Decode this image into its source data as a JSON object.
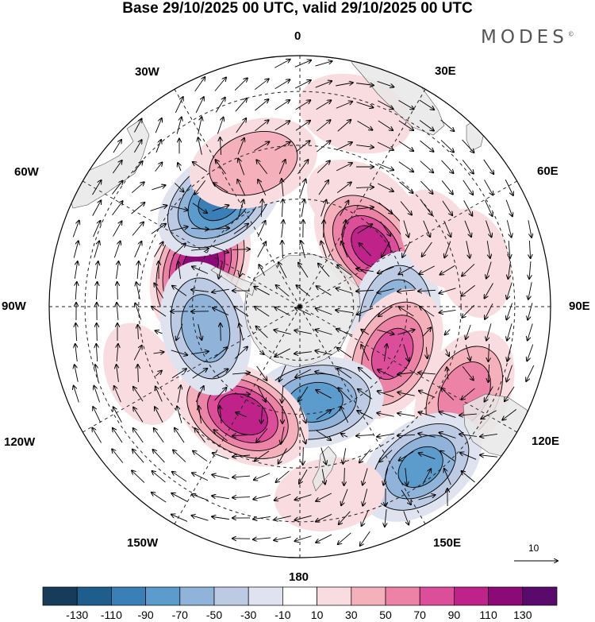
{
  "title": "Base 29/10/2025 00 UTC, valid 29/10/2025 00 UTC",
  "brand": "MODES",
  "brand_mark": "©",
  "longitude_labels": {
    "lon_0": "0",
    "lon_30e": "30E",
    "lon_60e": "60E",
    "lon_90e": "90E",
    "lon_120e": "120E",
    "lon_150e": "150E",
    "lon_180": "180",
    "lon_150w": "150W",
    "lon_120w": "120W",
    "lon_90w": "90W",
    "lon_60w": "60W",
    "lon_30w": "30W"
  },
  "reference_vector_label": "10",
  "colorbar": {
    "colors": [
      "#173c5a",
      "#1f5d8c",
      "#3a7fb5",
      "#5c9ccc",
      "#8fb3d9",
      "#bccbe3",
      "#dfe3ef",
      "#ffffff",
      "#f9dcdf",
      "#f4b0bb",
      "#ec82a5",
      "#dc4d9a",
      "#bf2289",
      "#8c0a78",
      "#5a0a6c"
    ],
    "tick_labels": [
      "-130",
      "-110",
      "-90",
      "-70",
      "-50",
      "-30",
      "-10",
      "10",
      "30",
      "50",
      "70",
      "90",
      "110",
      "130"
    ]
  },
  "anomaly_centres": [
    {
      "lon": -68,
      "lat": -60,
      "value": 118
    },
    {
      "lon": -37,
      "lat": -53,
      "value": -95
    },
    {
      "lon": -18,
      "lat": -48,
      "value": 48
    },
    {
      "lon": 16,
      "lat": -34,
      "value": 22
    },
    {
      "lon": 32,
      "lat": -57,
      "value": 28
    },
    {
      "lon": 50,
      "lat": -64,
      "value": 94
    },
    {
      "lon": 76,
      "lat": -40,
      "value": 18
    },
    {
      "lon": 98,
      "lat": -63,
      "value": -75
    },
    {
      "lon": 117,
      "lat": -61,
      "value": 76
    },
    {
      "lon": 118,
      "lat": -38,
      "value": 62
    },
    {
      "lon": 143,
      "lat": -34,
      "value": -72
    },
    {
      "lon": 171,
      "lat": -37,
      "value": 18
    },
    {
      "lon": 171,
      "lat": -63,
      "value": -78
    },
    {
      "lon": -152,
      "lat": -56,
      "value": 100
    },
    {
      "lon": -113,
      "lat": -42,
      "value": 15
    },
    {
      "lon": -103,
      "lat": -63,
      "value": -62
    },
    {
      "lon": 64,
      "lat": -47,
      "value": 14
    }
  ]
}
